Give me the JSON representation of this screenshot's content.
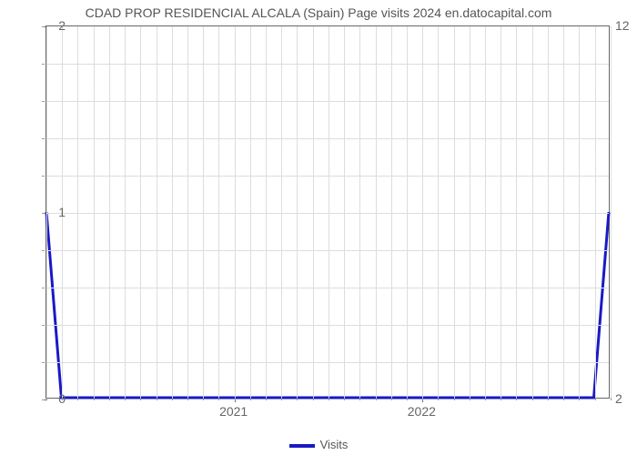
{
  "chart": {
    "type": "line",
    "title": "CDAD PROP RESIDENCIAL ALCALA (Spain) Page visits 2024 en.datocapital.com",
    "title_fontsize": 14,
    "title_color": "#555555",
    "background_color": "#ffffff",
    "plot_border_color": "#666666",
    "grid_color": "#dddddd",
    "grid_on": true,
    "x": {
      "lim": [
        2020,
        2023
      ],
      "major_labels": [
        "2021",
        "2022"
      ],
      "major_positions": [
        2021,
        2022
      ],
      "minor_step": 0.0833,
      "tick_fontsize": 14,
      "tick_color": "#666666"
    },
    "y_left": {
      "lim": [
        0,
        2
      ],
      "major_labels": [
        "0",
        "1",
        "2"
      ],
      "major_positions": [
        0,
        1,
        2
      ],
      "minor_step": 0.2,
      "tick_fontsize": 14,
      "tick_color": "#666666"
    },
    "y_right": {
      "labels": [
        "2",
        "12"
      ],
      "positions": [
        0,
        2
      ],
      "tick_fontsize": 14,
      "tick_color": "#666666"
    },
    "series": [
      {
        "name": "Visits",
        "color": "#1919c5",
        "line_width": 3,
        "x": [
          2020,
          2020.08,
          2022.92,
          2023
        ],
        "y": [
          1,
          0,
          0,
          1
        ]
      }
    ],
    "legend": {
      "label": "Visits",
      "color": "#1919c5",
      "swatch_width": 28,
      "swatch_height": 4,
      "fontsize": 13,
      "text_color": "#555555"
    }
  }
}
